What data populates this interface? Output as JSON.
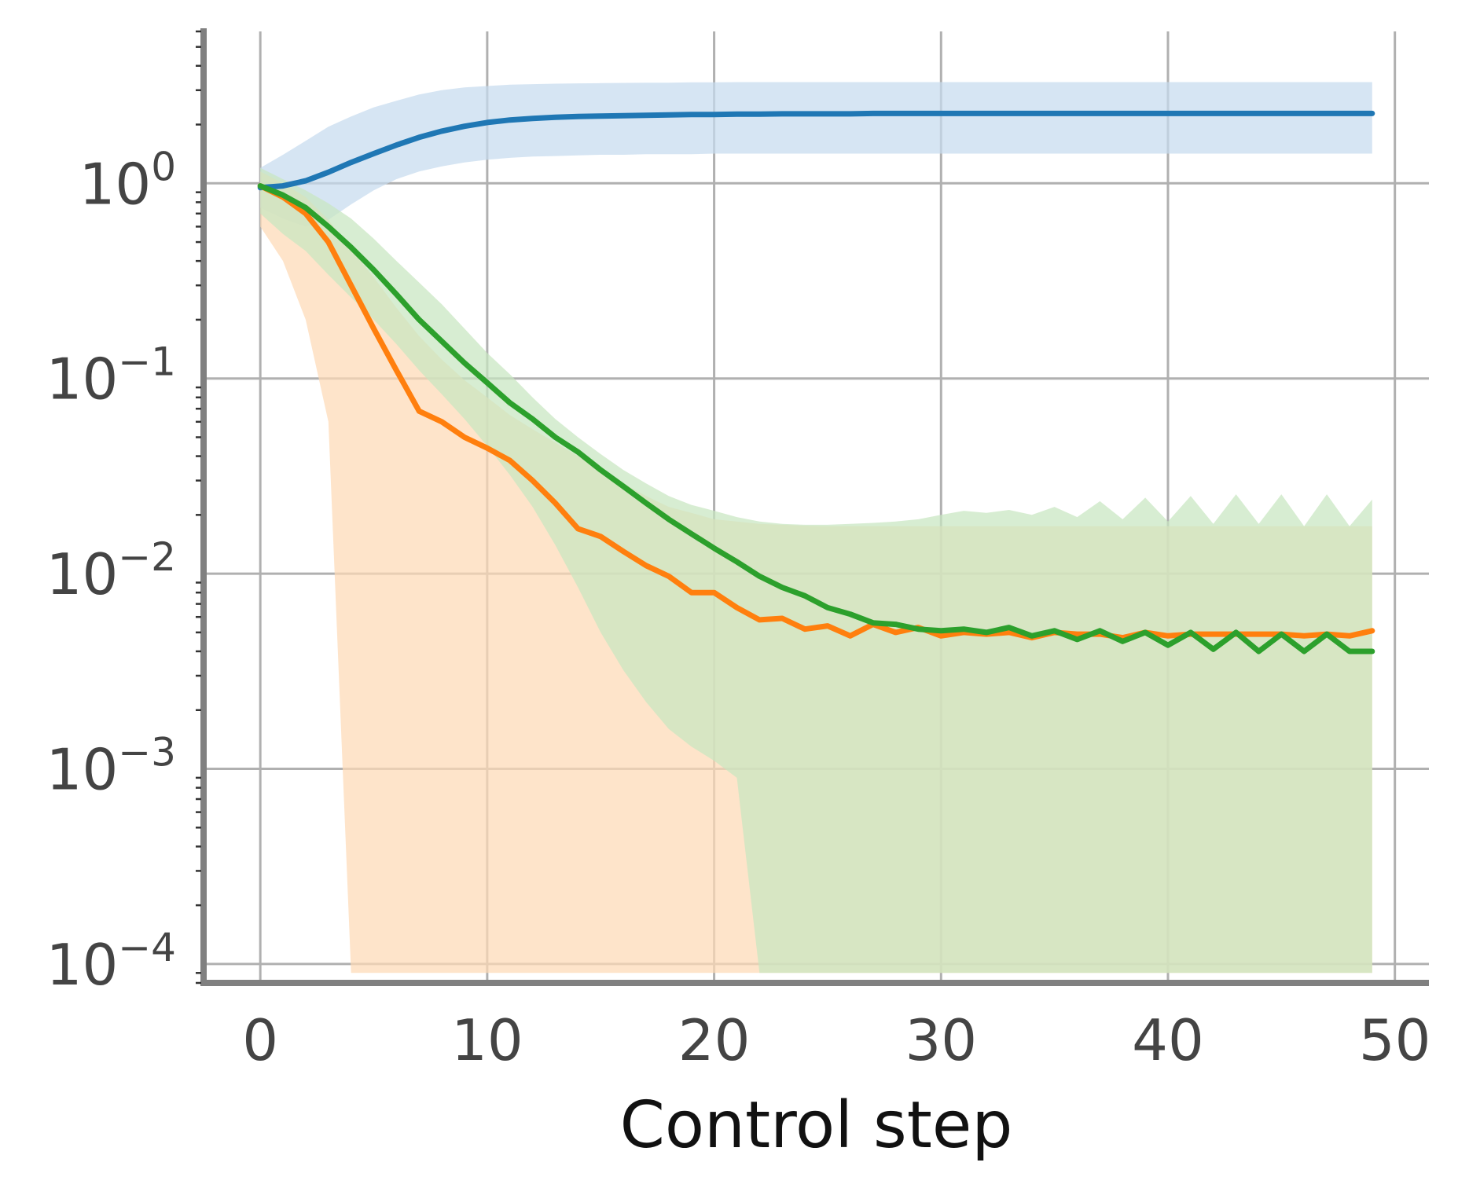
{
  "chart_data": {
    "type": "line",
    "title": "",
    "xlabel": "Control step",
    "ylabel": "",
    "yscale": "log",
    "xlim": [
      -2.5,
      51.5
    ],
    "ylim": [
      8e-05,
      6
    ],
    "grid": true,
    "x_ticks": [
      {
        "value": 0,
        "label": "0"
      },
      {
        "value": 10,
        "label": "10"
      },
      {
        "value": 20,
        "label": "20"
      },
      {
        "value": 30,
        "label": "30"
      },
      {
        "value": 40,
        "label": "40"
      },
      {
        "value": 50,
        "label": "50"
      }
    ],
    "y_ticks": [
      {
        "value": 1,
        "base": "10",
        "exp": "0"
      },
      {
        "value": 0.1,
        "base": "10",
        "exp": "−1"
      },
      {
        "value": 0.01,
        "base": "10",
        "exp": "−2"
      },
      {
        "value": 0.001,
        "base": "10",
        "exp": "−3"
      },
      {
        "value": 0.0001,
        "base": "10",
        "exp": "−4"
      }
    ],
    "series": [
      {
        "color": "#1f77b4",
        "band_color": "#c6dbef",
        "x": [
          0,
          1,
          2,
          3,
          4,
          5,
          6,
          7,
          8,
          9,
          10,
          11,
          12,
          13,
          14,
          15,
          16,
          17,
          18,
          19,
          20,
          21,
          22,
          23,
          24,
          25,
          26,
          27,
          28,
          29,
          30,
          31,
          32,
          33,
          34,
          35,
          36,
          37,
          38,
          39,
          40,
          41,
          42,
          43,
          44,
          45,
          46,
          47,
          48,
          49
        ],
        "y": [
          0.95,
          0.97,
          1.03,
          1.14,
          1.28,
          1.42,
          1.57,
          1.72,
          1.85,
          1.96,
          2.05,
          2.11,
          2.15,
          2.18,
          2.2,
          2.21,
          2.22,
          2.23,
          2.24,
          2.25,
          2.25,
          2.26,
          2.26,
          2.27,
          2.27,
          2.27,
          2.27,
          2.28,
          2.28,
          2.28,
          2.28,
          2.28,
          2.28,
          2.28,
          2.28,
          2.28,
          2.28,
          2.28,
          2.28,
          2.28,
          2.28,
          2.28,
          2.28,
          2.28,
          2.28,
          2.28,
          2.28,
          2.28,
          2.28,
          2.28
        ],
        "upper": [
          1.2,
          1.4,
          1.65,
          1.95,
          2.2,
          2.45,
          2.65,
          2.85,
          3.0,
          3.1,
          3.15,
          3.2,
          3.22,
          3.24,
          3.25,
          3.26,
          3.27,
          3.28,
          3.28,
          3.29,
          3.29,
          3.3,
          3.3,
          3.3,
          3.3,
          3.3,
          3.3,
          3.3,
          3.3,
          3.3,
          3.3,
          3.3,
          3.3,
          3.3,
          3.3,
          3.3,
          3.3,
          3.3,
          3.3,
          3.3,
          3.3,
          3.3,
          3.3,
          3.3,
          3.3,
          3.3,
          3.3,
          3.3,
          3.3,
          3.3
        ],
        "lower": [
          0.75,
          0.66,
          0.6,
          0.65,
          0.78,
          0.92,
          1.05,
          1.15,
          1.22,
          1.28,
          1.32,
          1.35,
          1.37,
          1.38,
          1.39,
          1.4,
          1.4,
          1.41,
          1.41,
          1.41,
          1.42,
          1.42,
          1.42,
          1.42,
          1.42,
          1.42,
          1.42,
          1.42,
          1.42,
          1.42,
          1.42,
          1.42,
          1.42,
          1.42,
          1.42,
          1.42,
          1.42,
          1.42,
          1.42,
          1.42,
          1.42,
          1.42,
          1.42,
          1.42,
          1.42,
          1.42,
          1.42,
          1.42,
          1.42,
          1.42
        ]
      },
      {
        "color": "#ff7f0e",
        "band_color": "#fdd9b5",
        "x": [
          0,
          1,
          2,
          3,
          4,
          5,
          6,
          7,
          8,
          9,
          10,
          11,
          12,
          13,
          14,
          15,
          16,
          17,
          18,
          19,
          20,
          21,
          22,
          23,
          24,
          25,
          26,
          27,
          28,
          29,
          30,
          31,
          32,
          33,
          34,
          35,
          36,
          37,
          38,
          39,
          40,
          41,
          42,
          43,
          44,
          45,
          46,
          47,
          48,
          49
        ],
        "y": [
          0.97,
          0.85,
          0.7,
          0.5,
          0.3,
          0.18,
          0.11,
          0.068,
          0.06,
          0.05,
          0.044,
          0.038,
          0.03,
          0.023,
          0.017,
          0.0155,
          0.013,
          0.011,
          0.0097,
          0.008,
          0.008,
          0.0067,
          0.0058,
          0.0059,
          0.0052,
          0.0054,
          0.0048,
          0.0055,
          0.005,
          0.0053,
          0.0048,
          0.005,
          0.0049,
          0.005,
          0.0047,
          0.005,
          0.0049,
          0.0049,
          0.0047,
          0.005,
          0.0048,
          0.0049,
          0.0049,
          0.0049,
          0.0049,
          0.0049,
          0.0048,
          0.0049,
          0.0048,
          0.0051
        ],
        "upper": [
          1.15,
          1.0,
          0.85,
          0.65,
          0.46,
          0.33,
          0.23,
          0.165,
          0.125,
          0.098,
          0.08,
          0.065,
          0.055,
          0.047,
          0.04,
          0.034,
          0.029,
          0.025,
          0.022,
          0.0205,
          0.019,
          0.0185,
          0.018,
          0.0178,
          0.0176,
          0.0175,
          0.0175,
          0.0175,
          0.0175,
          0.0175,
          0.0175,
          0.0175,
          0.0175,
          0.0175,
          0.0175,
          0.0175,
          0.0175,
          0.0175,
          0.0175,
          0.0175,
          0.0175,
          0.0175,
          0.0175,
          0.0175,
          0.0175,
          0.0175,
          0.0175,
          0.0175,
          0.0175,
          0.0175
        ],
        "lower": [
          0.6,
          0.4,
          0.2,
          0.06,
          9e-05,
          9e-05,
          9e-05,
          9e-05,
          9e-05,
          9e-05,
          9e-05,
          9e-05,
          9e-05,
          9e-05,
          9e-05,
          9e-05,
          9e-05,
          9e-05,
          9e-05,
          9e-05,
          9e-05,
          9e-05,
          9e-05,
          9e-05,
          9e-05,
          9e-05,
          9e-05,
          9e-05,
          9e-05,
          9e-05,
          9e-05,
          9e-05,
          9e-05,
          9e-05,
          9e-05,
          9e-05,
          9e-05,
          9e-05,
          9e-05,
          9e-05,
          9e-05,
          9e-05,
          9e-05,
          9e-05,
          9e-05,
          9e-05,
          9e-05,
          9e-05,
          9e-05,
          9e-05
        ]
      },
      {
        "color": "#2ca02c",
        "band_color": "#c7e6c1",
        "x": [
          0,
          1,
          2,
          3,
          4,
          5,
          6,
          7,
          8,
          9,
          10,
          11,
          12,
          13,
          14,
          15,
          16,
          17,
          18,
          19,
          20,
          21,
          22,
          23,
          24,
          25,
          26,
          27,
          28,
          29,
          30,
          31,
          32,
          33,
          34,
          35,
          36,
          37,
          38,
          39,
          40,
          41,
          42,
          43,
          44,
          45,
          46,
          47,
          48,
          49
        ],
        "y": [
          0.97,
          0.87,
          0.75,
          0.6,
          0.47,
          0.36,
          0.27,
          0.2,
          0.155,
          0.12,
          0.095,
          0.075,
          0.062,
          0.05,
          0.042,
          0.034,
          0.028,
          0.023,
          0.019,
          0.016,
          0.0135,
          0.0115,
          0.0097,
          0.0085,
          0.0077,
          0.0067,
          0.0062,
          0.0056,
          0.0055,
          0.0052,
          0.0051,
          0.0052,
          0.005,
          0.0053,
          0.0048,
          0.0051,
          0.0046,
          0.0051,
          0.0045,
          0.005,
          0.0043,
          0.005,
          0.0041,
          0.005,
          0.004,
          0.0049,
          0.004,
          0.0049,
          0.004,
          0.004
        ],
        "upper": [
          1.2,
          1.05,
          0.92,
          0.79,
          0.66,
          0.52,
          0.4,
          0.31,
          0.24,
          0.18,
          0.135,
          0.105,
          0.08,
          0.062,
          0.05,
          0.041,
          0.034,
          0.029,
          0.025,
          0.0225,
          0.021,
          0.0195,
          0.0185,
          0.018,
          0.0178,
          0.0178,
          0.018,
          0.0182,
          0.0185,
          0.019,
          0.02,
          0.021,
          0.0205,
          0.0212,
          0.02,
          0.022,
          0.0195,
          0.0235,
          0.019,
          0.0245,
          0.0185,
          0.025,
          0.018,
          0.0255,
          0.018,
          0.0255,
          0.0175,
          0.0255,
          0.0175,
          0.024
        ],
        "lower": [
          0.7,
          0.55,
          0.45,
          0.34,
          0.26,
          0.2,
          0.15,
          0.11,
          0.083,
          0.062,
          0.045,
          0.032,
          0.022,
          0.014,
          0.0085,
          0.005,
          0.0032,
          0.0022,
          0.0016,
          0.0013,
          0.0011,
          0.0009,
          9e-05,
          9e-05,
          9e-05,
          9e-05,
          9e-05,
          9e-05,
          9e-05,
          9e-05,
          9e-05,
          9e-05,
          9e-05,
          9e-05,
          9e-05,
          9e-05,
          9e-05,
          9e-05,
          9e-05,
          9e-05,
          9e-05,
          9e-05,
          9e-05,
          9e-05,
          9e-05,
          9e-05,
          9e-05,
          9e-05,
          9e-05,
          9e-05
        ]
      }
    ]
  }
}
